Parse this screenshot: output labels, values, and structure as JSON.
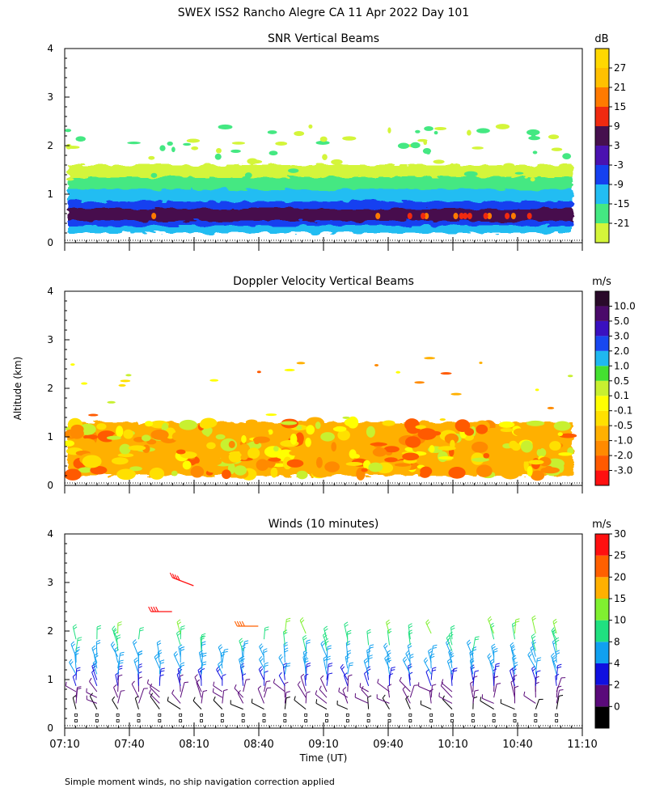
{
  "page": {
    "title": "SWEX ISS2 Rancho Alegre CA  11 Apr 2022 Day 101",
    "ylabel": "Altitude (km)",
    "xlabel": "Time (UT)",
    "footnote": "Simple moment winds, no ship navigation correction applied"
  },
  "chart_data": [
    {
      "type": "heatmap",
      "title": "SNR Vertical Beams",
      "xlabel": "Time (UT)",
      "ylabel": "Altitude (km)",
      "xlim": [
        "07:10",
        "11:10"
      ],
      "ylim": [
        0,
        4
      ],
      "x_ticks": [
        "07:10",
        "07:40",
        "08:10",
        "08:40",
        "09:10",
        "09:40",
        "10:10",
        "10:40",
        "11:10"
      ],
      "y_ticks": [
        "0",
        "1",
        "2",
        "3",
        "4"
      ],
      "colorbar": {
        "unit": "dB",
        "levels": [
          "-21",
          "-15",
          "-9",
          "-3",
          "3",
          "9",
          "15",
          "21",
          "27"
        ],
        "colors": [
          "#d4f53a",
          "#44e882",
          "#22bdf2",
          "#1540f0",
          "#4a12b0",
          "#46104e",
          "#f02a10",
          "#ff7a00",
          "#ffc000",
          "#ffd800"
        ]
      },
      "layers": [
        {
          "name": "weak echo",
          "from_km": 0.2,
          "to_km": 1.6,
          "value_db": -20
        },
        {
          "name": "green band",
          "from_km": 0.2,
          "to_km": 1.35,
          "value_db": -15
        },
        {
          "name": "cyan band",
          "from_km": 0.2,
          "to_km": 1.1,
          "value_db": -9
        },
        {
          "name": "blue layer",
          "from_km": 0.35,
          "to_km": 0.85,
          "value_db": -3
        },
        {
          "name": "peak layer",
          "from_km": 0.45,
          "to_km": 0.7,
          "value_db": 9
        }
      ]
    },
    {
      "type": "heatmap",
      "title": "Doppler Velocity Vertical Beams",
      "xlabel": "Time (UT)",
      "ylabel": "Altitude (km)",
      "xlim": [
        "07:10",
        "11:10"
      ],
      "ylim": [
        0,
        4
      ],
      "x_ticks": [
        "07:10",
        "07:40",
        "08:10",
        "08:40",
        "09:10",
        "09:40",
        "10:10",
        "10:40",
        "11:10"
      ],
      "y_ticks": [
        "0",
        "1",
        "2",
        "3",
        "4"
      ],
      "colorbar": {
        "unit": "m/s",
        "levels": [
          "-3.0",
          "-2.0",
          "-1.0",
          "-0.5",
          "-0.1",
          "0.1",
          "0.5",
          "1.0",
          "2.0",
          "3.0",
          "5.0",
          "10.0"
        ],
        "colors": [
          "#ff1010",
          "#ff5a00",
          "#ff8a00",
          "#ffb000",
          "#ffe000",
          "#ffff00",
          "#c8f030",
          "#44e030",
          "#1fb8f0",
          "#1848f0",
          "#3a10c0",
          "#4a0a6a",
          "#2a0a2a"
        ]
      },
      "layers": [
        {
          "name": "echo region",
          "from_km": 0.2,
          "to_km": 1.3,
          "value_ms": -0.3
        }
      ]
    },
    {
      "type": "scatter",
      "title": "Winds (10 minutes)",
      "xlabel": "Time (UT)",
      "ylabel": "Altitude (km)",
      "xlim": [
        "07:10",
        "11:10"
      ],
      "ylim": [
        0,
        4
      ],
      "x_ticks": [
        "07:10",
        "07:40",
        "08:10",
        "08:40",
        "09:10",
        "09:40",
        "10:10",
        "10:40",
        "11:10"
      ],
      "y_ticks": [
        "0",
        "1",
        "2",
        "3",
        "4"
      ],
      "colorbar": {
        "unit": "m/s",
        "levels": [
          "0",
          "2",
          "4",
          "8",
          "10",
          "15",
          "20",
          "25",
          "30"
        ],
        "colors": [
          "#000000",
          "#5a0a7a",
          "#1010e0",
          "#10a0f0",
          "#20e080",
          "#80f030",
          "#ffb000",
          "#ff6000",
          "#ff1010"
        ]
      },
      "profiles": {
        "interval_min": 10,
        "count": 24,
        "wind_arrows": [
          {
            "name": "high red barbs",
            "time": "07:50",
            "alt_km": 2.4,
            "speed_ms": 30
          },
          {
            "name": "upper red barbs",
            "time": "08:00",
            "alt_km": 3.1,
            "speed_ms": 30
          },
          {
            "name": "orange barbs",
            "time": "08:30",
            "alt_km": 2.1,
            "speed_ms": 25
          }
        ]
      }
    }
  ]
}
